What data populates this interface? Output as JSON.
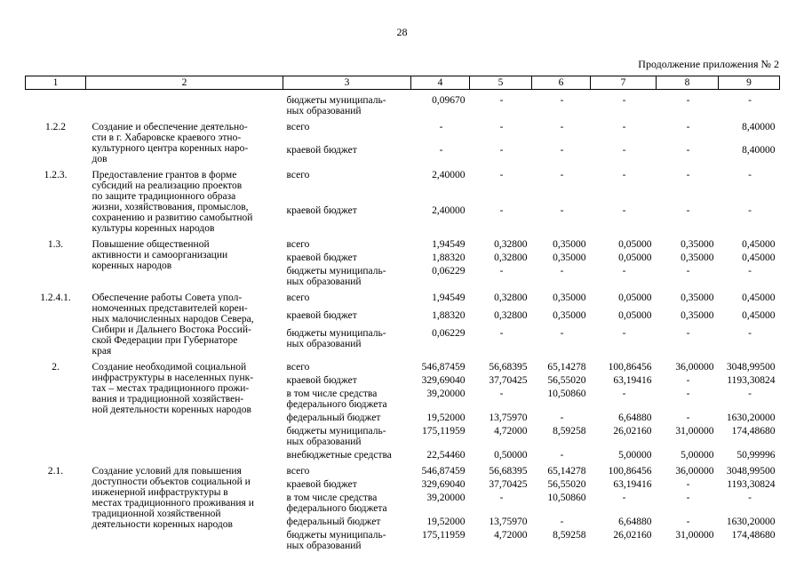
{
  "page": {
    "number": "28",
    "appendix_note": "Продолжение приложения № 2"
  },
  "table": {
    "column_numbers": [
      "1",
      "2",
      "3",
      "4",
      "5",
      "6",
      "7",
      "8",
      "9"
    ],
    "rows": [
      {
        "num": "",
        "desc": [],
        "lines": [
          {
            "label": [
              "бюджеты муниципаль-",
              "ных образований"
            ],
            "values": [
              "0,09670",
              "-",
              "-",
              "-",
              "-",
              "-"
            ]
          }
        ]
      },
      {
        "num": "1.2.2",
        "desc": [
          "Создание и обеспечение деятельно-",
          "сти в г. Хабаровске краевого этно-",
          "культурного центра коренных наро-",
          "дов"
        ],
        "lines": [
          {
            "label": [
              "всего"
            ],
            "values": [
              "-",
              "-",
              "-",
              "-",
              "-",
              "8,40000"
            ]
          },
          {
            "label": [
              "краевой бюджет"
            ],
            "values": [
              "-",
              "-",
              "-",
              "-",
              "-",
              "8,40000"
            ]
          }
        ]
      },
      {
        "num": "1.2.3.",
        "desc": [
          "Предоставление грантов в форме",
          "субсидий на реализацию проектов",
          "по защите традиционного образа",
          "жизни, хозяйствования, промыслов,",
          "сохранению и развитию самобытной",
          "культуры коренных народов"
        ],
        "lines": [
          {
            "label": [
              "всего"
            ],
            "values": [
              "2,40000",
              "-",
              "-",
              "-",
              "-",
              "-"
            ]
          },
          {
            "label": [
              "краевой бюджет"
            ],
            "values": [
              "2,40000",
              "-",
              "-",
              "-",
              "-",
              "-"
            ]
          }
        ]
      },
      {
        "num": "1.3.",
        "desc": [
          "Повышение общественной",
          "активности и самоорганизации",
          "коренных народов"
        ],
        "lines": [
          {
            "label": [
              "всего"
            ],
            "values": [
              "1,94549",
              "0,32800",
              "0,35000",
              "0,05000",
              "0,35000",
              "0,45000"
            ]
          },
          {
            "label": [
              "краевой бюджет"
            ],
            "values": [
              "1,88320",
              "0,32800",
              "0,35000",
              "0,05000",
              "0,35000",
              "0,45000"
            ]
          },
          {
            "label": [
              "бюджеты муниципаль-",
              "ных образований"
            ],
            "values": [
              "0,06229",
              "-",
              "-",
              "-",
              "-",
              "-"
            ]
          }
        ]
      },
      {
        "num": "1.2.4.1.",
        "desc": [
          "Обеспечение работы Совета упол-",
          "номоченных представителей корен-",
          "ных малочисленных народов Севера,",
          "Сибири и Дальнего Востока Россий-",
          "ской Федерации при Губернаторе",
          "края"
        ],
        "lines": [
          {
            "label": [
              "всего"
            ],
            "values": [
              "1,94549",
              "0,32800",
              "0,35000",
              "0,05000",
              "0,35000",
              "0,45000"
            ]
          },
          {
            "label": [
              "краевой бюджет"
            ],
            "values": [
              "1,88320",
              "0,32800",
              "0,35000",
              "0,05000",
              "0,35000",
              "0,45000"
            ]
          },
          {
            "label": [
              "бюджеты муниципаль-",
              "ных образований"
            ],
            "values": [
              "0,06229",
              "-",
              "-",
              "-",
              "-",
              "-"
            ]
          }
        ]
      },
      {
        "num": "2.",
        "desc": [
          "Создание необходимой социальной",
          "инфраструктуры в населенных пунк-",
          "тах – местах традиционного прожи-",
          "вания и традиционной хозяйствен-",
          "ной деятельности коренных народов"
        ],
        "lines": [
          {
            "label": [
              "всего"
            ],
            "values": [
              "546,87459",
              "56,68395",
              "65,14278",
              "100,86456",
              "36,00000",
              "3048,99500"
            ]
          },
          {
            "label": [
              "краевой бюджет"
            ],
            "values": [
              "329,69040",
              "37,70425",
              "56,55020",
              "63,19416",
              "-",
              "1193,30824"
            ]
          },
          {
            "label": [
              "в том числе средства",
              "федерального бюджета"
            ],
            "values": [
              "39,20000",
              "-",
              "10,50860",
              "-",
              "-",
              "-"
            ]
          },
          {
            "label": [
              "федеральный бюджет"
            ],
            "values": [
              "19,52000",
              "13,75970",
              "-",
              "6,64880",
              "-",
              "1630,20000"
            ]
          },
          {
            "label": [
              "бюджеты муниципаль-",
              "ных образований"
            ],
            "values": [
              "175,11959",
              "4,72000",
              "8,59258",
              "26,02160",
              "31,00000",
              "174,48680"
            ]
          },
          {
            "label": [
              "внебюджетные средства"
            ],
            "values": [
              "22,54460",
              "0,50000",
              "-",
              "5,00000",
              "5,00000",
              "50,99996"
            ]
          }
        ]
      },
      {
        "num": "2.1.",
        "desc": [
          "Создание условий для повышения",
          "доступности объектов социальной и",
          "инженерной инфраструктуры в",
          "местах традиционного проживания и",
          "традиционной хозяйственной",
          "деятельности коренных народов"
        ],
        "lines": [
          {
            "label": [
              "всего"
            ],
            "values": [
              "546,87459",
              "56,68395",
              "65,14278",
              "100,86456",
              "36,00000",
              "3048,99500"
            ]
          },
          {
            "label": [
              "краевой бюджет"
            ],
            "values": [
              "329,69040",
              "37,70425",
              "56,55020",
              "63,19416",
              "-",
              "1193,30824"
            ]
          },
          {
            "label": [
              "в том числе средства",
              "федерального бюджета"
            ],
            "values": [
              "39,20000",
              "-",
              "10,50860",
              "-",
              "-",
              "-"
            ]
          },
          {
            "label": [
              "федеральный бюджет"
            ],
            "values": [
              "19,52000",
              "13,75970",
              "-",
              "6,64880",
              "-",
              "1630,20000"
            ]
          },
          {
            "label": [
              "бюджеты муниципаль-",
              "ных образований"
            ],
            "values": [
              "175,11959",
              "4,72000",
              "8,59258",
              "26,02160",
              "31,00000",
              "174,48680"
            ]
          }
        ]
      }
    ]
  }
}
